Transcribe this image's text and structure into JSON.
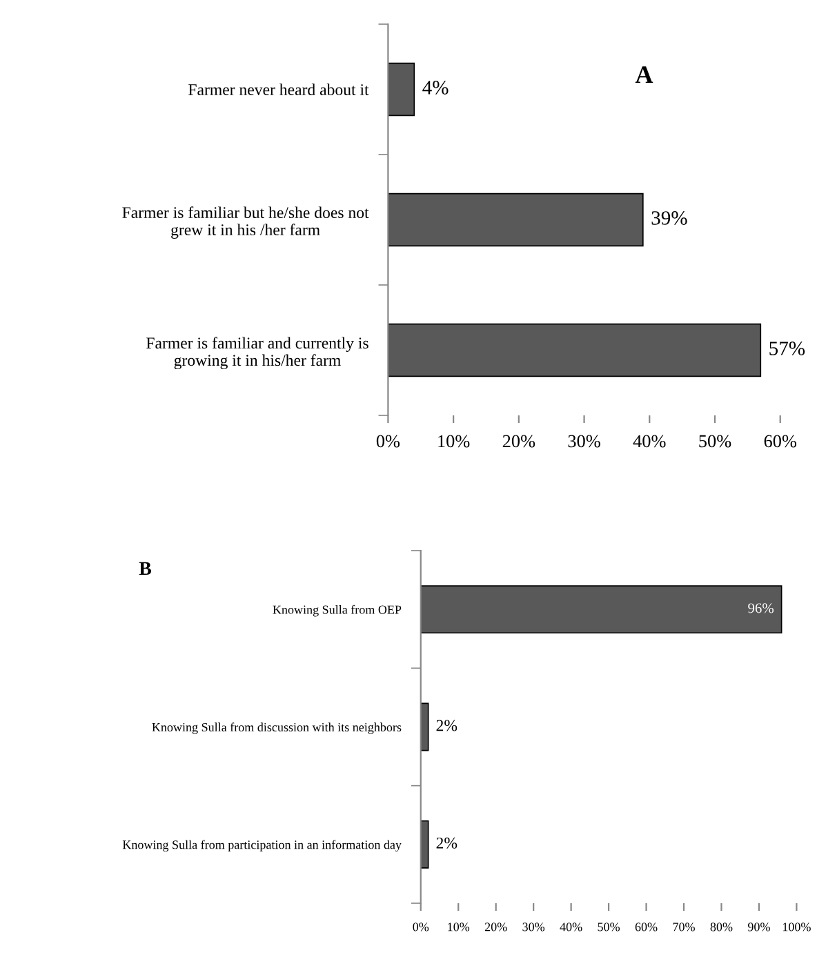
{
  "chart_data": [
    {
      "type": "bar",
      "orientation": "horizontal",
      "title": "A",
      "categories": [
        "Farmer never heard about it",
        "Farmer is familiar but he/she does not\ngrew it in his /her farm",
        "Farmer is familiar and currently is\ngrowing it in his/her farm"
      ],
      "values": [
        4,
        39,
        57
      ],
      "value_labels": [
        "4%",
        "39%",
        "57%"
      ],
      "color": "#595959",
      "xlim": [
        0,
        60
      ],
      "xticks": [
        {
          "value": 0,
          "label": "0%"
        },
        {
          "value": 10,
          "label": "10%"
        },
        {
          "value": 20,
          "label": "20%"
        },
        {
          "value": 30,
          "label": "30%"
        },
        {
          "value": 40,
          "label": "40%"
        },
        {
          "value": 50,
          "label": "50%"
        },
        {
          "value": 60,
          "label": "60%"
        }
      ],
      "grid": false,
      "legend": false
    },
    {
      "type": "bar",
      "orientation": "horizontal",
      "title": "B",
      "categories": [
        "Knowing Sulla from OEP",
        "Knowing Sulla from discussion with its neighbors",
        "Knowing Sulla from participation in an information day"
      ],
      "values": [
        96,
        2,
        2
      ],
      "value_labels": [
        "96%",
        "2%",
        "2%"
      ],
      "color": "#595959",
      "xlim": [
        0,
        100
      ],
      "xticks": [
        {
          "value": 0,
          "label": "0%"
        },
        {
          "value": 10,
          "label": "10%"
        },
        {
          "value": 20,
          "label": "20%"
        },
        {
          "value": 30,
          "label": "30%"
        },
        {
          "value": 40,
          "label": "40%"
        },
        {
          "value": 50,
          "label": "50%"
        },
        {
          "value": 60,
          "label": "60%"
        },
        {
          "value": 70,
          "label": "70%"
        },
        {
          "value": 80,
          "label": "80%"
        },
        {
          "value": 90,
          "label": "90%"
        },
        {
          "value": 100,
          "label": "100%"
        }
      ],
      "grid": false,
      "legend": false
    }
  ]
}
